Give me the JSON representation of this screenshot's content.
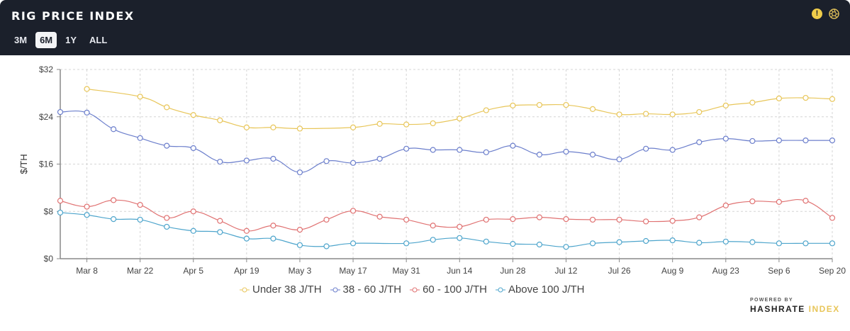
{
  "header": {
    "title": "RIG PRICE INDEX",
    "ranges": [
      "3M",
      "6M",
      "1Y",
      "ALL"
    ],
    "active_range": "6M",
    "icons": [
      "warning-icon",
      "aperture-icon"
    ],
    "warning_glyph": "!"
  },
  "colors": {
    "header_bg": "#1b202b",
    "yellow": "#e8c65a",
    "blue": "#6c7fcc",
    "red": "#e07272",
    "cyan": "#4ea5cc"
  },
  "chart_data": {
    "type": "line",
    "ylabel": "$/TH",
    "ylim": [
      0,
      32
    ],
    "yticks": [
      "$0",
      "$8",
      "$16",
      "$24",
      "$32"
    ],
    "ytick_values": [
      0,
      8,
      16,
      24,
      32
    ],
    "grid": true,
    "legend_placement": "bottom",
    "x": [
      "Mar 1",
      "Mar 8",
      "Mar 15",
      "Mar 22",
      "Mar 29",
      "Apr 5",
      "Apr 12",
      "Apr 19",
      "Apr 26",
      "May 3",
      "May 10",
      "May 17",
      "May 24",
      "May 31",
      "Jun 7",
      "Jun 14",
      "Jun 21",
      "Jun 28",
      "Jul 5",
      "Jul 12",
      "Jul 19",
      "Jul 26",
      "Aug 2",
      "Aug 9",
      "Aug 16",
      "Aug 23",
      "Aug 30",
      "Sep 6",
      "Sep 13",
      "Sep 20"
    ],
    "xticks": [
      "Mar 8",
      "Mar 22",
      "Apr 5",
      "Apr 19",
      "May 3",
      "May 17",
      "May 31",
      "Jun 14",
      "Jun 28",
      "Jul 12",
      "Jul 26",
      "Aug 9",
      "Aug 23",
      "Sep 6",
      "Sep 20"
    ],
    "series": [
      {
        "name": "Under 38 J/TH",
        "color": "#e8c65a",
        "values": [
          null,
          28.7,
          null,
          27.4,
          25.6,
          24.3,
          23.4,
          22.2,
          22.2,
          22.0,
          null,
          22.2,
          22.8,
          22.7,
          22.9,
          23.7,
          25.1,
          25.9,
          26.0,
          26.0,
          25.3,
          24.4,
          24.5,
          24.4,
          24.8,
          25.9,
          26.4,
          27.1,
          27.2,
          27.0
        ]
      },
      {
        "name": "38 - 60 J/TH",
        "color": "#6c7fcc",
        "values": [
          24.8,
          24.7,
          21.9,
          20.4,
          19.1,
          18.7,
          16.4,
          16.6,
          16.9,
          14.6,
          16.5,
          16.2,
          16.9,
          18.6,
          18.4,
          18.4,
          18.0,
          19.1,
          17.6,
          18.1,
          17.6,
          16.8,
          18.6,
          18.4,
          19.7,
          20.3,
          19.9,
          20.0,
          20.0,
          20.0
        ]
      },
      {
        "name": "60 - 100 J/TH",
        "color": "#e07272",
        "values": [
          9.8,
          8.8,
          9.9,
          9.1,
          6.9,
          8.0,
          6.4,
          4.7,
          5.6,
          4.9,
          6.6,
          8.1,
          7.1,
          6.6,
          5.6,
          5.4,
          6.6,
          6.7,
          7.0,
          6.7,
          6.6,
          6.6,
          6.3,
          6.4,
          7.0,
          9.0,
          9.7,
          9.6,
          9.8,
          6.9
        ]
      },
      {
        "name": "Above 100 J/TH",
        "color": "#4ea5cc",
        "values": [
          7.8,
          7.4,
          6.7,
          6.6,
          5.4,
          4.7,
          4.5,
          3.4,
          3.4,
          2.3,
          2.1,
          2.6,
          null,
          2.6,
          3.2,
          3.5,
          2.9,
          2.5,
          2.4,
          2.0,
          2.6,
          2.8,
          3.0,
          3.1,
          2.7,
          2.9,
          2.8,
          2.6,
          2.6,
          2.6
        ]
      }
    ]
  },
  "branding": {
    "powered_by": "POWERED BY",
    "name_a": "HASHRATE",
    "name_b": "INDEX"
  }
}
